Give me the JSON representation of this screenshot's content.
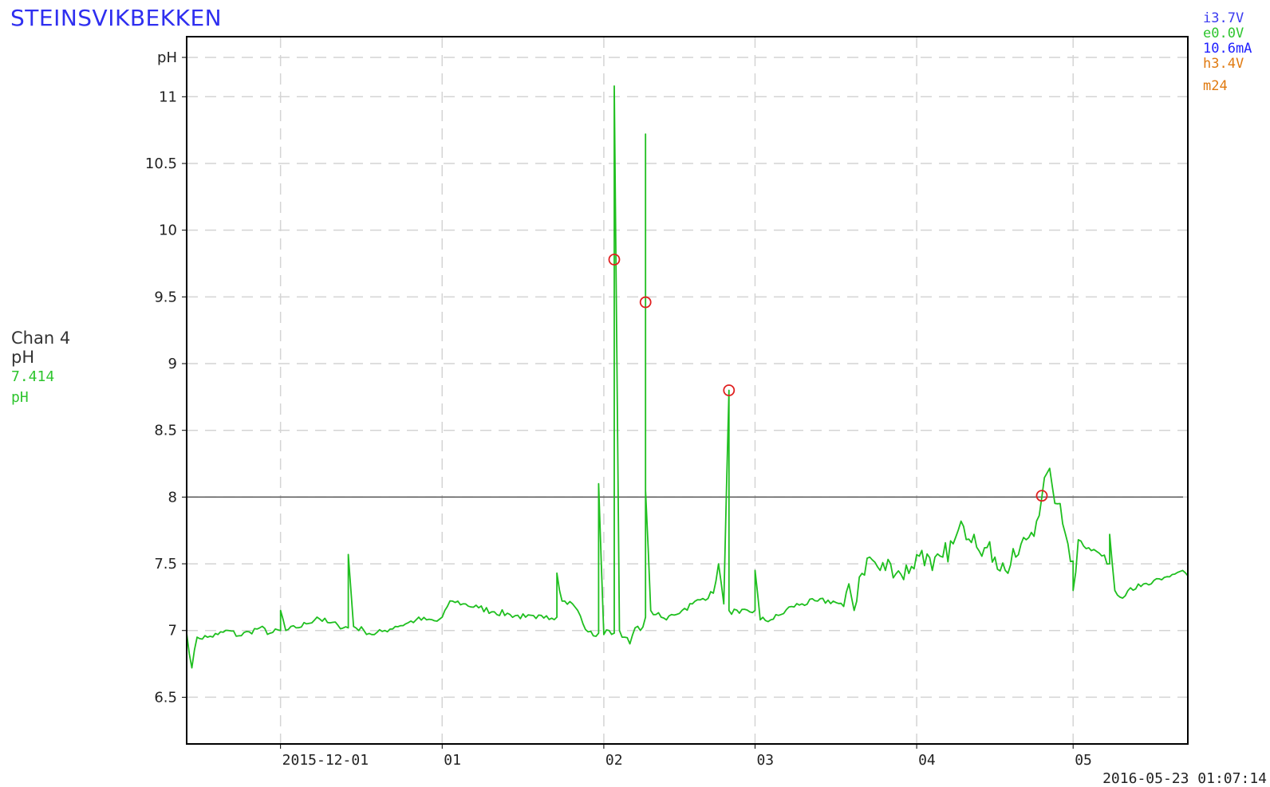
{
  "station": {
    "title": "STEINSVIKBEKKEN"
  },
  "status": {
    "lines": [
      {
        "text": "i3.7V",
        "color": "#3b3bf0"
      },
      {
        "text": "e0.0V",
        "color": "#2ec52e"
      },
      {
        "text": "10.6mA",
        "color": "#2020ff"
      },
      {
        "text": "h3.4V",
        "color": "#e07a10"
      },
      {
        "text": "m24",
        "color": "#e07a10"
      }
    ]
  },
  "channel": {
    "name": "Chan 4",
    "unit": "pH",
    "value": "7.414",
    "value_unit": "pH"
  },
  "timestamp": "2016-05-23 01:07:14",
  "colors": {
    "series": "#1fbf1f",
    "threshold": "#555555",
    "marker": "#e02020",
    "grid": "#d4d4d4",
    "axis": "#000000"
  },
  "chart_data": {
    "type": "line",
    "title": "STEINSVIKBEKKEN",
    "ylabel": "pH",
    "xlabel": "",
    "ylim": [
      6.15,
      11.45
    ],
    "xlim": [
      "2015-11-13",
      "2016-05-23"
    ],
    "grid": true,
    "y_ticks": [
      {
        "value": 6.5,
        "label": "6.5"
      },
      {
        "value": 7,
        "label": "7"
      },
      {
        "value": 7.5,
        "label": "7.5"
      },
      {
        "value": 8,
        "label": "8"
      },
      {
        "value": 8.5,
        "label": "8.5"
      },
      {
        "value": 9,
        "label": "9"
      },
      {
        "value": 9.5,
        "label": "9.5"
      },
      {
        "value": 10,
        "label": "10"
      },
      {
        "value": 10.5,
        "label": "10.5"
      },
      {
        "value": 11,
        "label": "11"
      }
    ],
    "y_unit_label": "pH",
    "x_ticks": [
      {
        "date": "2015-12-01",
        "label": "2015-12-01"
      },
      {
        "date": "2016-01-01",
        "label": "01"
      },
      {
        "date": "2016-02-01",
        "label": "02"
      },
      {
        "date": "2016-03-01",
        "label": "03"
      },
      {
        "date": "2016-04-01",
        "label": "04"
      },
      {
        "date": "2016-05-01",
        "label": "05"
      }
    ],
    "threshold": 8.0,
    "series": [
      {
        "points": [
          [
            "2015-11-13",
            6.98
          ],
          [
            "2015-11-14",
            6.72
          ],
          [
            "2015-11-15",
            6.95
          ],
          [
            "2015-11-17",
            6.95
          ],
          [
            "2015-11-19",
            6.97
          ],
          [
            "2015-11-21",
            7.0
          ],
          [
            "2015-11-23",
            6.96
          ],
          [
            "2015-11-25",
            6.99
          ],
          [
            "2015-11-27",
            7.02
          ],
          [
            "2015-11-29",
            6.98
          ],
          [
            "2015-12-01",
            7.0
          ],
          [
            "2015-12-01",
            7.15
          ],
          [
            "2015-12-02",
            7.0
          ],
          [
            "2015-12-04",
            7.02
          ],
          [
            "2015-12-06",
            7.05
          ],
          [
            "2015-12-08",
            7.1
          ],
          [
            "2015-12-10",
            7.06
          ],
          [
            "2015-12-12",
            7.04
          ],
          [
            "2015-12-14",
            7.02
          ],
          [
            "2015-12-14",
            7.57
          ],
          [
            "2015-12-15",
            7.03
          ],
          [
            "2015-12-17",
            7.0
          ],
          [
            "2015-12-19",
            6.97
          ],
          [
            "2015-12-21",
            7.0
          ],
          [
            "2015-12-23",
            7.03
          ],
          [
            "2015-12-25",
            7.05
          ],
          [
            "2015-12-27",
            7.08
          ],
          [
            "2015-12-29",
            7.08
          ],
          [
            "2015-12-31",
            7.07
          ],
          [
            "2016-01-01",
            7.1
          ],
          [
            "2016-01-02",
            7.18
          ],
          [
            "2016-01-03",
            7.22
          ],
          [
            "2016-01-05",
            7.2
          ],
          [
            "2016-01-08",
            7.17
          ],
          [
            "2016-01-11",
            7.14
          ],
          [
            "2016-01-14",
            7.12
          ],
          [
            "2016-01-17",
            7.1
          ],
          [
            "2016-01-19",
            7.09
          ],
          [
            "2016-01-21",
            7.11
          ],
          [
            "2016-01-23",
            7.1
          ],
          [
            "2016-01-23",
            7.43
          ],
          [
            "2016-01-24",
            7.22
          ],
          [
            "2016-01-26",
            7.2
          ],
          [
            "2016-01-27",
            7.15
          ],
          [
            "2016-01-28",
            7.05
          ],
          [
            "2016-01-29",
            6.99
          ],
          [
            "2016-01-30",
            6.96
          ],
          [
            "2016-01-31",
            6.98
          ],
          [
            "2016-01-31",
            8.1
          ],
          [
            "2016-02-01",
            6.97
          ],
          [
            "2016-02-02",
            7.0
          ],
          [
            "2016-02-03",
            6.98
          ],
          [
            "2016-02-03",
            11.08
          ],
          [
            "2016-02-04",
            7.0
          ],
          [
            "2016-02-05",
            6.95
          ],
          [
            "2016-02-06",
            6.9
          ],
          [
            "2016-02-07",
            7.02
          ],
          [
            "2016-02-08",
            7.0
          ],
          [
            "2016-02-09",
            7.1
          ],
          [
            "2016-02-09",
            10.72
          ],
          [
            "2016-02-09",
            8.05
          ],
          [
            "2016-02-10",
            7.15
          ],
          [
            "2016-02-11",
            7.12
          ],
          [
            "2016-02-12",
            7.1
          ],
          [
            "2016-02-13",
            7.08
          ],
          [
            "2016-02-14",
            7.12
          ],
          [
            "2016-02-16",
            7.15
          ],
          [
            "2016-02-18",
            7.2
          ],
          [
            "2016-02-20",
            7.24
          ],
          [
            "2016-02-22",
            7.28
          ],
          [
            "2016-02-23",
            7.5
          ],
          [
            "2016-02-24",
            7.2
          ],
          [
            "2016-02-25",
            8.8
          ],
          [
            "2016-02-25",
            7.15
          ],
          [
            "2016-02-27",
            7.13
          ],
          [
            "2016-03-01",
            7.15
          ],
          [
            "2016-03-01",
            7.45
          ],
          [
            "2016-03-02",
            7.08
          ],
          [
            "2016-03-04",
            7.08
          ],
          [
            "2016-03-06",
            7.12
          ],
          [
            "2016-03-08",
            7.18
          ],
          [
            "2016-03-10",
            7.2
          ],
          [
            "2016-03-13",
            7.22
          ],
          [
            "2016-03-16",
            7.22
          ],
          [
            "2016-03-18",
            7.18
          ],
          [
            "2016-03-19",
            7.35
          ],
          [
            "2016-03-20",
            7.15
          ],
          [
            "2016-03-21",
            7.4
          ],
          [
            "2016-03-23",
            7.55
          ],
          [
            "2016-03-25",
            7.45
          ],
          [
            "2016-03-27",
            7.5
          ],
          [
            "2016-03-29",
            7.42
          ],
          [
            "2016-03-31",
            7.48
          ],
          [
            "2016-04-02",
            7.6
          ],
          [
            "2016-04-04",
            7.45
          ],
          [
            "2016-04-06",
            7.55
          ],
          [
            "2016-04-08",
            7.65
          ],
          [
            "2016-04-10",
            7.78
          ],
          [
            "2016-04-12",
            7.72
          ],
          [
            "2016-04-14",
            7.62
          ],
          [
            "2016-04-16",
            7.55
          ],
          [
            "2016-04-18",
            7.45
          ],
          [
            "2016-04-20",
            7.55
          ],
          [
            "2016-04-22",
            7.68
          ],
          [
            "2016-04-24",
            7.82
          ],
          [
            "2016-04-25",
            8.0
          ],
          [
            "2016-04-26",
            8.18
          ],
          [
            "2016-04-27",
            8.08
          ],
          [
            "2016-04-28",
            7.95
          ],
          [
            "2016-04-29",
            7.8
          ],
          [
            "2016-04-30",
            7.65
          ],
          [
            "2016-05-01",
            7.52
          ],
          [
            "2016-05-01",
            7.3
          ],
          [
            "2016-05-02",
            7.68
          ],
          [
            "2016-05-04",
            7.62
          ],
          [
            "2016-05-06",
            7.58
          ],
          [
            "2016-05-08",
            7.5
          ],
          [
            "2016-05-08",
            7.72
          ],
          [
            "2016-05-09",
            7.3
          ],
          [
            "2016-05-10",
            7.25
          ],
          [
            "2016-05-12",
            7.32
          ],
          [
            "2016-05-14",
            7.33
          ],
          [
            "2016-05-16",
            7.35
          ],
          [
            "2016-05-18",
            7.38
          ],
          [
            "2016-05-20",
            7.42
          ],
          [
            "2016-05-22",
            7.45
          ],
          [
            "2016-05-23",
            7.41
          ]
        ]
      }
    ],
    "markers": [
      {
        "date": "2016-02-03",
        "value": 9.78
      },
      {
        "date": "2016-02-09",
        "value": 9.46
      },
      {
        "date": "2016-02-25",
        "value": 8.8
      },
      {
        "date": "2016-04-25",
        "value": 8.01
      }
    ]
  }
}
